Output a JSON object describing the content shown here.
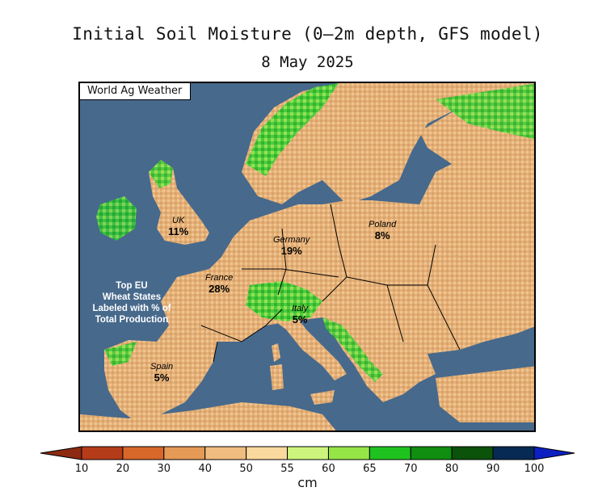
{
  "title": "Initial Soil Moisture (0—2m depth, GFS model)",
  "subtitle": "8 May 2025",
  "credit": "World Ag Weather",
  "note": [
    "Top EU",
    "Wheat States",
    "Labeled with % of",
    "Total Production"
  ],
  "countries": [
    {
      "key": "uk",
      "name": "UK",
      "percent": "11%"
    },
    {
      "key": "germany",
      "name": "Germany",
      "percent": "19%"
    },
    {
      "key": "poland",
      "name": "Poland",
      "percent": "8%"
    },
    {
      "key": "france",
      "name": "France",
      "percent": "28%"
    },
    {
      "key": "italy",
      "name": "Italy",
      "percent": "5%"
    },
    {
      "key": "spain",
      "name": "Spain",
      "percent": "5%"
    }
  ],
  "legend": {
    "unit": "cm",
    "ticks": [
      "10",
      "20",
      "30",
      "40",
      "50",
      "55",
      "60",
      "65",
      "70",
      "80",
      "90",
      "100"
    ],
    "colors": [
      "#8c2a12",
      "#b53c19",
      "#d8672a",
      "#e59a56",
      "#f0bd80",
      "#fad99e",
      "#cdf57d",
      "#96e548",
      "#1fc31f",
      "#0f8e0f",
      "#0b520b",
      "#072a55",
      "#0d20c2"
    ]
  },
  "colors": {
    "sea": "#47698c",
    "dry_land": "#e8b87c",
    "moist_land": "#3cc83c"
  }
}
